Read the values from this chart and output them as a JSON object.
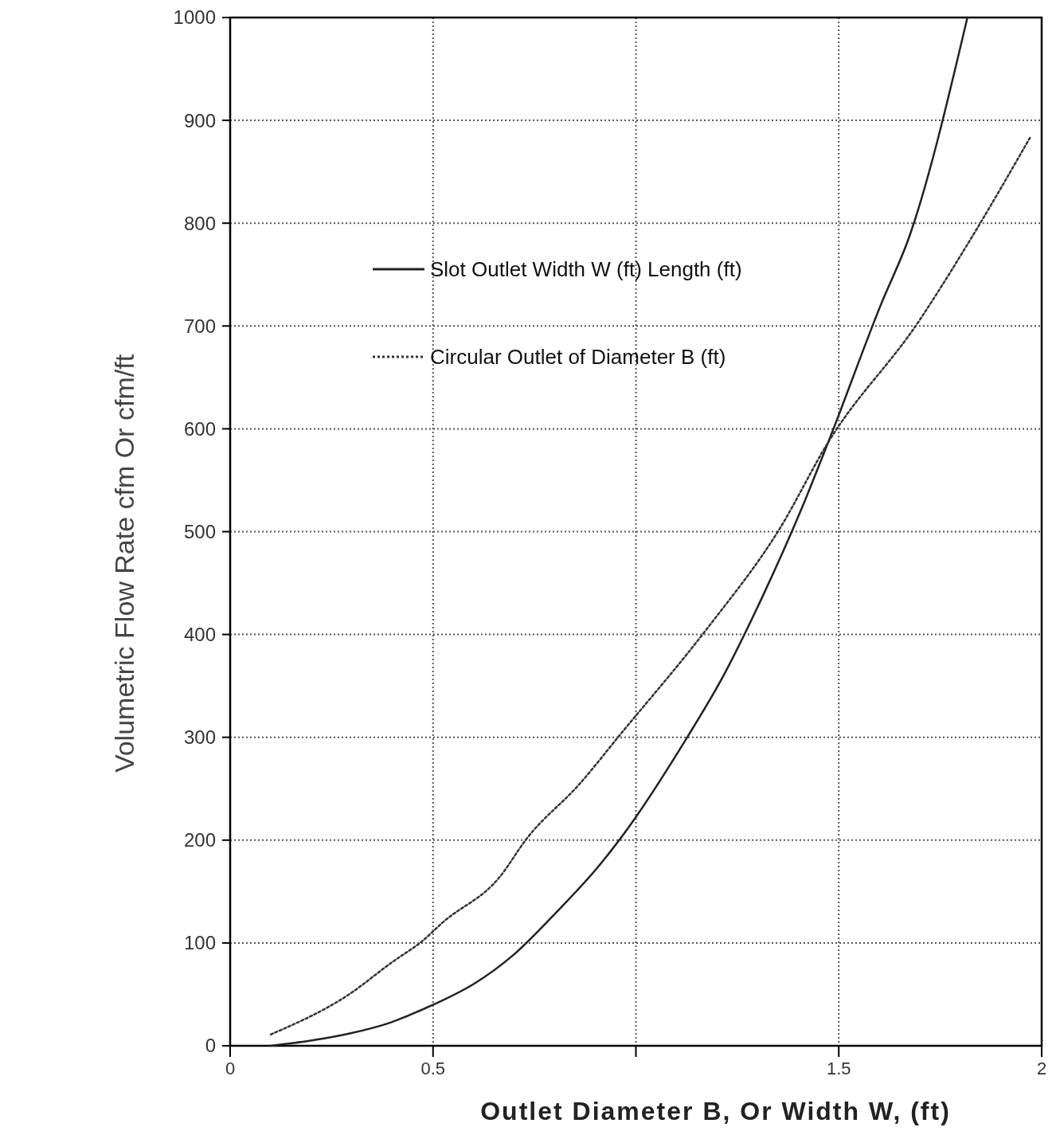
{
  "chart_data": {
    "type": "line",
    "xlabel": "Outlet Diameter B, Or Width W, (ft)",
    "ylabel": "Volumetric Flow Rate cfm Or cfm/ft",
    "xlim": [
      0,
      2
    ],
    "xticks": [
      0,
      0.5,
      {
        "value": 1,
        "label": null
      },
      1.5,
      2
    ],
    "ylim": [
      0,
      1000
    ],
    "yticks": [
      0,
      100,
      200,
      300,
      400,
      500,
      600,
      700,
      800,
      900,
      1000
    ],
    "grid": true,
    "legend": "top",
    "marker": "none",
    "series": [
      {
        "name": "Slot Outlet Width W (ft)  Length (ft)",
        "color": "#222222",
        "line_style": "solid",
        "x": [
          0.1,
          0.198,
          0.295,
          0.398,
          0.478,
          0.523,
          0.6,
          0.697,
          0.797,
          0.909,
          0.972,
          1.128,
          1.209,
          1.311,
          1.409,
          1.478,
          1.605,
          1.673,
          1.817
        ],
        "values": [
          0,
          5,
          12,
          23,
          36,
          44,
          60,
          88,
          127,
          175,
          207,
          301,
          355,
          436,
          523,
          591,
          722,
          786,
          1000
        ]
      },
      {
        "name": "Circular Outlet of Diameter B (ft)",
        "color": "#333333",
        "line_style": "dotted",
        "x": [
          0.1,
          0.293,
          0.398,
          0.477,
          0.524,
          0.664,
          0.73,
          0.862,
          0.962,
          1.176,
          1.353,
          1.474,
          1.698,
          1.815,
          1.971
        ],
        "values": [
          11,
          50,
          81,
          103,
          120,
          164,
          201,
          255,
          303,
          406,
          502,
          587,
          705,
          778,
          883
        ]
      }
    ]
  }
}
